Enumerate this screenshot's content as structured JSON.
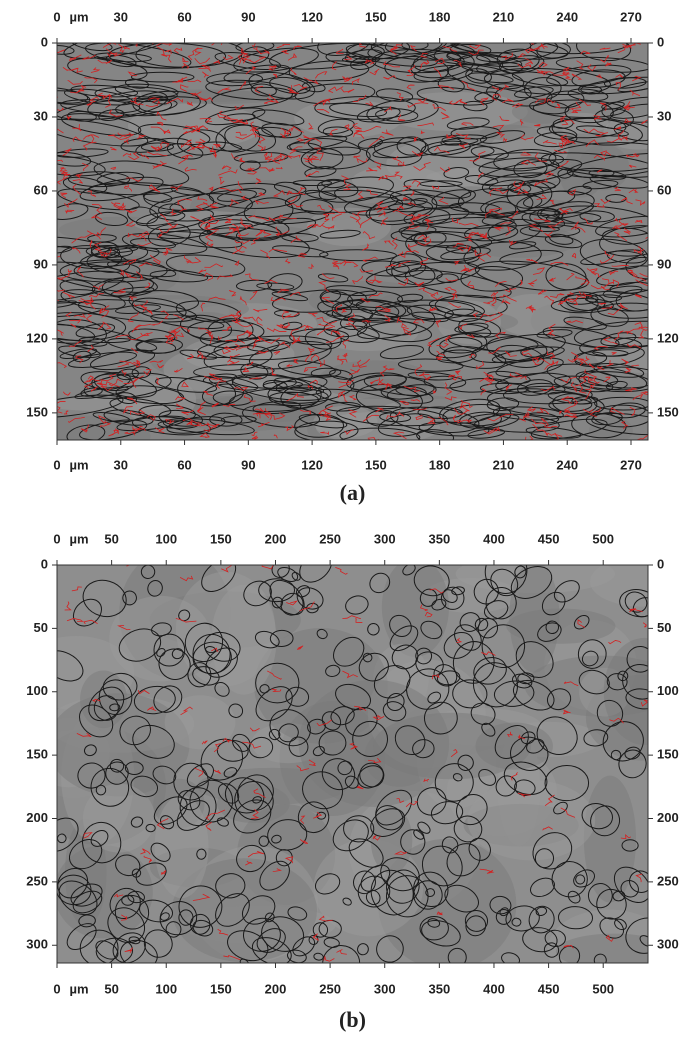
{
  "panels": [
    {
      "label": "(a)",
      "unit": "µm",
      "xlim": [
        0,
        278
      ],
      "ylim": [
        0,
        161
      ],
      "xticks": [
        0,
        30,
        60,
        90,
        120,
        150,
        180,
        210,
        240,
        270
      ],
      "yticks": [
        0,
        30,
        60,
        90,
        120,
        150
      ]
    },
    {
      "label": "(b)",
      "unit": "µm",
      "xlim": [
        0,
        541
      ],
      "ylim": [
        0,
        314
      ],
      "xticks": [
        0,
        50,
        100,
        150,
        200,
        250,
        300,
        350,
        400,
        450,
        500
      ],
      "yticks": [
        0,
        50,
        100,
        150,
        200,
        250,
        300
      ]
    }
  ]
}
